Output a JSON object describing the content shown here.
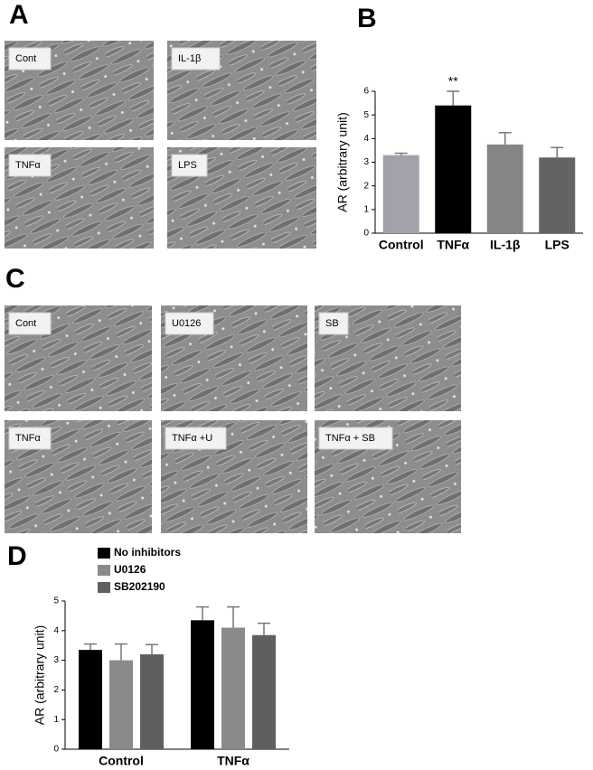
{
  "panel_labels": [
    "A",
    "B",
    "C",
    "D"
  ],
  "images_a": [
    "Cont",
    "IL-1β",
    "TNFα",
    "LPS"
  ],
  "images_c": [
    "Cont",
    "U0126",
    "SB",
    "TNFα",
    "TNFα +U",
    "TNFα + SB"
  ],
  "chart_data": [
    {
      "type": "bar",
      "y_label": "AR (arbitrary unit)",
      "categories": [
        "Control",
        "TNFα",
        "IL-1β",
        "LPS"
      ],
      "values": [
        3.3,
        5.4,
        3.75,
        3.2
      ],
      "errors": [
        0.08,
        0.6,
        0.5,
        0.42
      ],
      "colors": [
        "#a2a2aa",
        "#000000",
        "#858585",
        "#636363"
      ],
      "annotations": [
        {
          "text": "**",
          "category": "TNFα"
        }
      ],
      "ylim": [
        0,
        6
      ],
      "yticks": [
        0,
        1,
        2,
        3,
        4,
        5,
        6
      ]
    },
    {
      "type": "grouped_bar",
      "y_label": "AR (arbitrary unit)",
      "categories": [
        "Control",
        "TNFα"
      ],
      "series": [
        {
          "name": "No inhibitors",
          "color": "#000000",
          "values": [
            3.35,
            4.35
          ],
          "errors": [
            0.2,
            0.45
          ]
        },
        {
          "name": "U0126",
          "color": "#8a8a8a",
          "values": [
            3.0,
            4.1
          ],
          "errors": [
            0.55,
            0.7
          ]
        },
        {
          "name": "SB202190",
          "color": "#5f5f5f",
          "values": [
            3.2,
            3.85
          ],
          "errors": [
            0.33,
            0.4
          ]
        }
      ],
      "ylim": [
        0,
        5
      ],
      "yticks": [
        0,
        1,
        2,
        3,
        4,
        5
      ]
    }
  ]
}
